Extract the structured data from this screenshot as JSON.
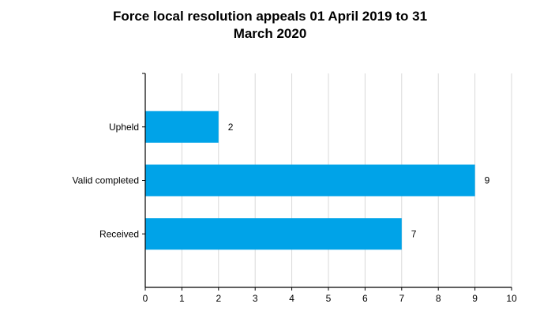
{
  "chart_data": {
    "type": "bar",
    "orientation": "horizontal",
    "title_lines": [
      "Force local resolution appeals 01 April 2019 to 31",
      "March 2020"
    ],
    "categories": [
      "Upheld",
      "Valid completed",
      "Received"
    ],
    "values": [
      2,
      9,
      7
    ],
    "xlim": [
      0,
      10
    ],
    "x_ticks": [
      "0",
      "1",
      "2",
      "3",
      "4",
      "5",
      "6",
      "7",
      "8",
      "9",
      "10"
    ],
    "grid": true,
    "data_labels": true,
    "bar_color": "#00A3E8",
    "grid_color": "#D9D9D9"
  }
}
